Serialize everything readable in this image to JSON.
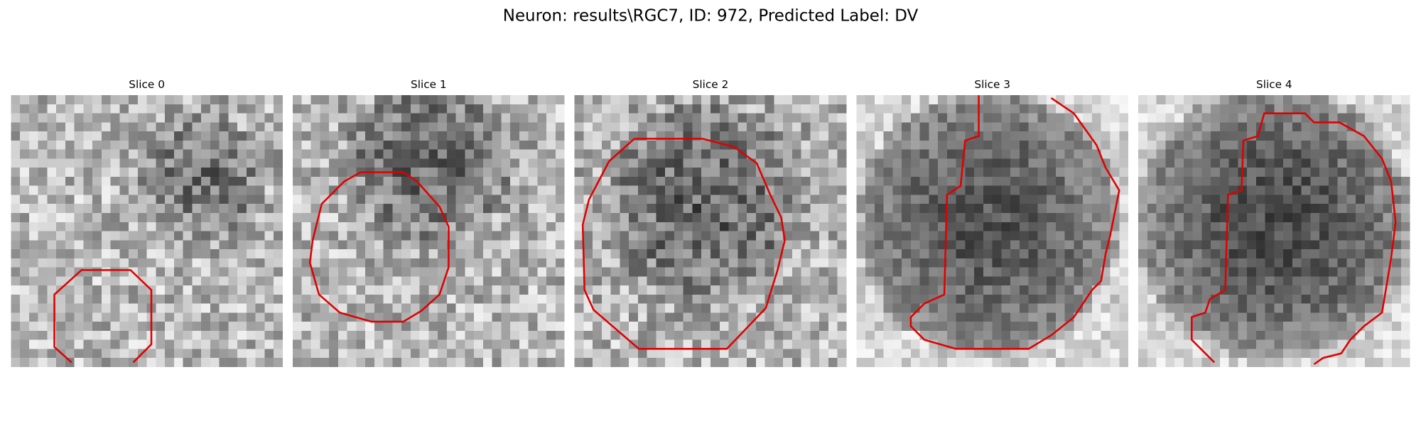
{
  "title": "Neuron: results\\RGC7, ID: 972, Predicted Label: DV",
  "panels": [
    {
      "title": "Slice 0"
    },
    {
      "title": "Slice 1"
    },
    {
      "title": "Slice 2"
    },
    {
      "title": "Slice 3"
    },
    {
      "title": "Slice 4"
    }
  ]
}
